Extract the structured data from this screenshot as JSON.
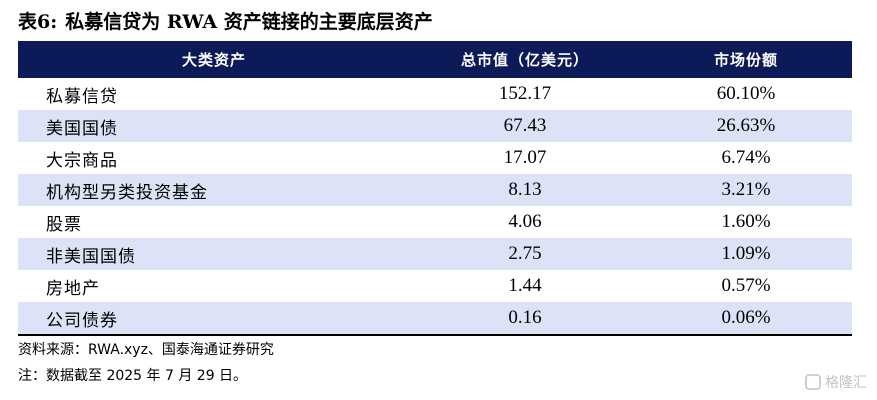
{
  "title": {
    "label": "表6:",
    "text": "私募信贷为 RWA 资产链接的主要底层资产"
  },
  "table": {
    "headers": [
      "大类资产",
      "总市值（亿美元）",
      "市场份额"
    ],
    "rows": [
      {
        "asset": "私募信贷",
        "value": "152.17",
        "share": "60.10%"
      },
      {
        "asset": "美国国债",
        "value": "67.43",
        "share": "26.63%"
      },
      {
        "asset": "大宗商品",
        "value": "17.07",
        "share": "6.74%"
      },
      {
        "asset": "机构型另类投资基金",
        "value": "8.13",
        "share": "3.21%"
      },
      {
        "asset": "股票",
        "value": "4.06",
        "share": "1.60%"
      },
      {
        "asset": "非美国国债",
        "value": "2.75",
        "share": "1.09%"
      },
      {
        "asset": "房地产",
        "value": "1.44",
        "share": "0.57%"
      },
      {
        "asset": "公司债券",
        "value": "0.16",
        "share": "0.06%"
      }
    ]
  },
  "notes": {
    "source": "资料来源：RWA.xyz、国泰海通证券研究",
    "note": "注：数据截至 2025 年 7 月 29 日。"
  },
  "watermark": {
    "text": "格隆汇",
    "icon": "gelonghui-logo-icon"
  },
  "colors": {
    "header_bg": "#0d1a58",
    "alt_row_bg": "#dde3f6"
  }
}
